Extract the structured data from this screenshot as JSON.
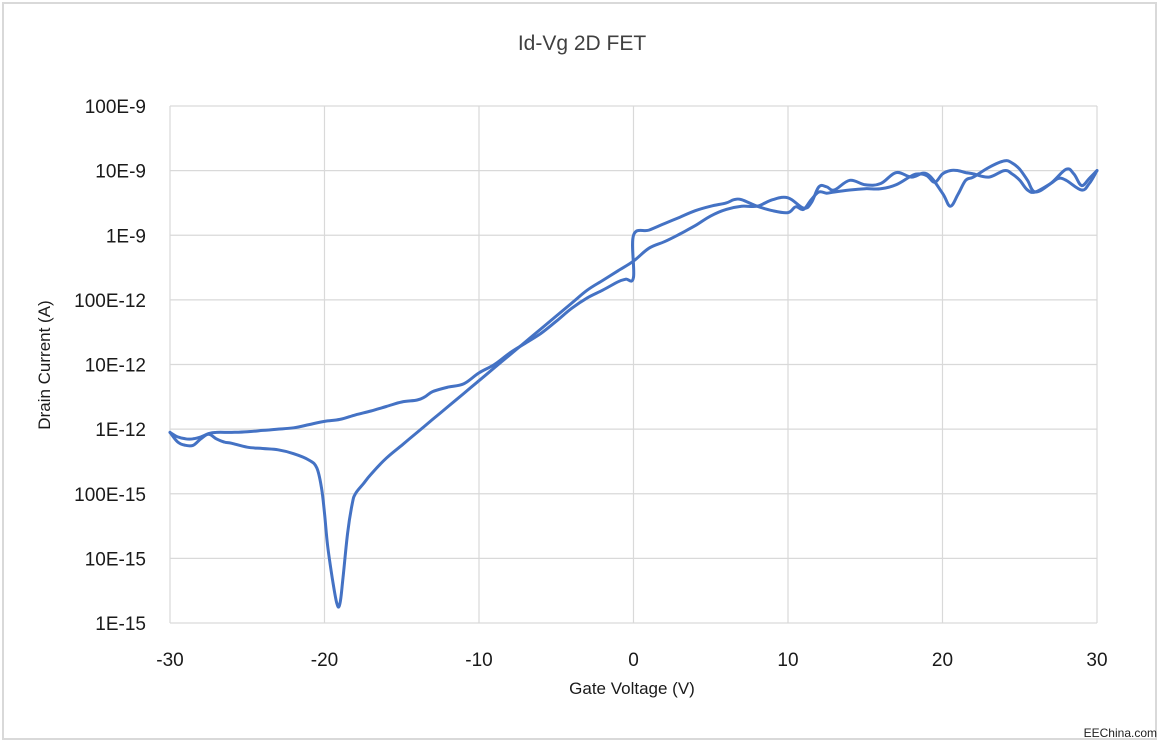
{
  "chart_data": {
    "type": "line",
    "title": "Id-Vg 2D FET",
    "xlabel": "Gate Voltage (V)",
    "ylabel": "Drain Current (A)",
    "xlim": [
      -30,
      30
    ],
    "x_ticks": [
      -30,
      -20,
      -10,
      0,
      10,
      20,
      30
    ],
    "x_tick_labels": [
      "-30",
      "-20",
      "-10",
      "0",
      "10",
      "20",
      "30"
    ],
    "y_scale": "log",
    "y_tick_labels": [
      "100E-9",
      "10E-9",
      "1E-9",
      "100E-12",
      "10E-12",
      "1E-12",
      "100E-15",
      "10E-15",
      "1E-15"
    ],
    "grid": true,
    "legend": "none",
    "series_color": "#4472c4",
    "series": [
      {
        "x": [
          -30,
          -29.5,
          -29,
          -28.5,
          -28,
          -27.5,
          -27,
          -26.5,
          -26,
          -25,
          -24,
          -23,
          -22,
          -21,
          -20.5,
          -20.2,
          -20,
          -19.8,
          -19.5,
          -19.2,
          -19,
          -18.8,
          -18.5,
          -18.2,
          -18,
          -17.5,
          -17,
          -16,
          -15,
          -14,
          -13,
          -12,
          -11,
          -10,
          -9,
          -8,
          -7,
          -6,
          -5,
          -4,
          -3,
          -2,
          -1,
          0,
          1,
          2,
          3,
          4,
          5,
          6,
          7,
          8,
          9,
          10,
          11,
          11.5,
          12,
          12.5,
          13,
          14,
          15,
          16,
          17,
          18,
          19,
          20,
          20.5,
          21,
          21.5,
          22,
          23,
          24,
          24.5,
          25,
          25.5,
          26,
          27,
          28,
          28.5,
          29,
          29.5,
          30
        ],
        "y_exponent": [
          -12.05,
          -12.2,
          -12.25,
          -12.25,
          -12.15,
          -12.08,
          -12.15,
          -12.2,
          -12.22,
          -12.28,
          -12.3,
          -12.32,
          -12.38,
          -12.48,
          -12.6,
          -12.9,
          -13.3,
          -13.8,
          -14.3,
          -14.7,
          -14.7,
          -14.3,
          -13.6,
          -13.15,
          -13.0,
          -12.85,
          -12.7,
          -12.45,
          -12.25,
          -12.05,
          -11.85,
          -11.65,
          -11.45,
          -11.25,
          -11.05,
          -10.85,
          -10.65,
          -10.45,
          -10.25,
          -10.05,
          -9.85,
          -9.7,
          -9.55,
          -9.4,
          -9.2,
          -9.1,
          -8.98,
          -8.85,
          -8.7,
          -8.6,
          -8.55,
          -8.55,
          -8.45,
          -8.42,
          -8.58,
          -8.5,
          -8.25,
          -8.25,
          -8.3,
          -8.15,
          -8.22,
          -8.2,
          -8.03,
          -8.1,
          -8.05,
          -8.35,
          -8.55,
          -8.37,
          -8.15,
          -8.1,
          -7.95,
          -7.85,
          -7.88,
          -7.98,
          -8.15,
          -8.33,
          -8.2,
          -7.98,
          -8.05,
          -8.23,
          -8.12,
          -8.0
        ]
      },
      {
        "x": [
          -30,
          -29.5,
          -29,
          -28.5,
          -28,
          -27.5,
          -27,
          -26,
          -25,
          -24,
          -23,
          -22,
          -21,
          -20,
          -19,
          -18,
          -17,
          -16,
          -15,
          -14,
          -13.5,
          -13,
          -12,
          -11,
          -10,
          -9,
          -8,
          -7,
          -6,
          -5,
          -4,
          -3,
          -2,
          -1,
          -0.5,
          0,
          0,
          1,
          2,
          3,
          4,
          5,
          6,
          6.5,
          7,
          8,
          9,
          10,
          10.5,
          11,
          11.5,
          12,
          12.5,
          13,
          14,
          15,
          16,
          17,
          18,
          18.5,
          19,
          19.5,
          20,
          20.5,
          21,
          21.5,
          22,
          23,
          24,
          24.5,
          25,
          25.5,
          26,
          27,
          27.5,
          28,
          29,
          29.5,
          30
        ],
        "y_exponent": [
          -12.05,
          -12.12,
          -12.15,
          -12.15,
          -12.12,
          -12.07,
          -12.05,
          -12.05,
          -12.04,
          -12.02,
          -12.0,
          -11.98,
          -11.93,
          -11.88,
          -11.85,
          -11.78,
          -11.72,
          -11.65,
          -11.58,
          -11.55,
          -11.5,
          -11.42,
          -11.35,
          -11.3,
          -11.13,
          -11.0,
          -10.82,
          -10.67,
          -10.52,
          -10.33,
          -10.13,
          -9.97,
          -9.85,
          -9.72,
          -9.68,
          -9.65,
          -9.0,
          -8.92,
          -8.82,
          -8.72,
          -8.62,
          -8.55,
          -8.5,
          -8.45,
          -8.45,
          -8.55,
          -8.62,
          -8.65,
          -8.56,
          -8.6,
          -8.45,
          -8.33,
          -8.35,
          -8.33,
          -8.3,
          -8.28,
          -8.28,
          -8.22,
          -8.08,
          -8.05,
          -8.08,
          -8.18,
          -8.05,
          -8.0,
          -8.0,
          -8.03,
          -8.05,
          -8.1,
          -8.0,
          -8.05,
          -8.15,
          -8.3,
          -8.33,
          -8.2,
          -8.12,
          -8.15,
          -8.3,
          -8.2,
          -8.0
        ]
      }
    ]
  },
  "watermark": "EEChina.com"
}
